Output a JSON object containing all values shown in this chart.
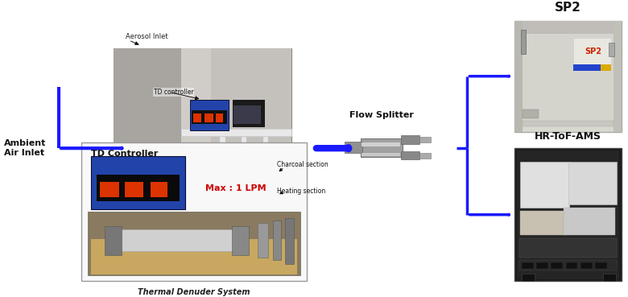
{
  "background_color": "#ffffff",
  "arrow_color": "#1a1aff",
  "labels": {
    "ambient_air_inlet": "Ambient\nAir Inlet",
    "aerosol_inlet": "Aerosol Inlet",
    "td_controller_label": "TD controller",
    "flow_splitter": "Flow Splitter",
    "charcoal_section": "Charcoal section",
    "heating_section": "Heating section",
    "thermal_denuder": "Thermal Denuder System",
    "td_controller_box": "TD Controller",
    "max_lpm": "Max : 1 LPM",
    "sp2": "SP2",
    "hr_tof_ams": "HR-ToF-AMS"
  },
  "colors": {
    "max_lpm_text": "#cc0000",
    "label_text": "#333333",
    "box_border": "#aaaaaa",
    "title_text": "#111111",
    "blue_arrow": "#1a1aff"
  },
  "layout": {
    "fig_w": 7.8,
    "fig_h": 3.69,
    "dpi": 100
  }
}
